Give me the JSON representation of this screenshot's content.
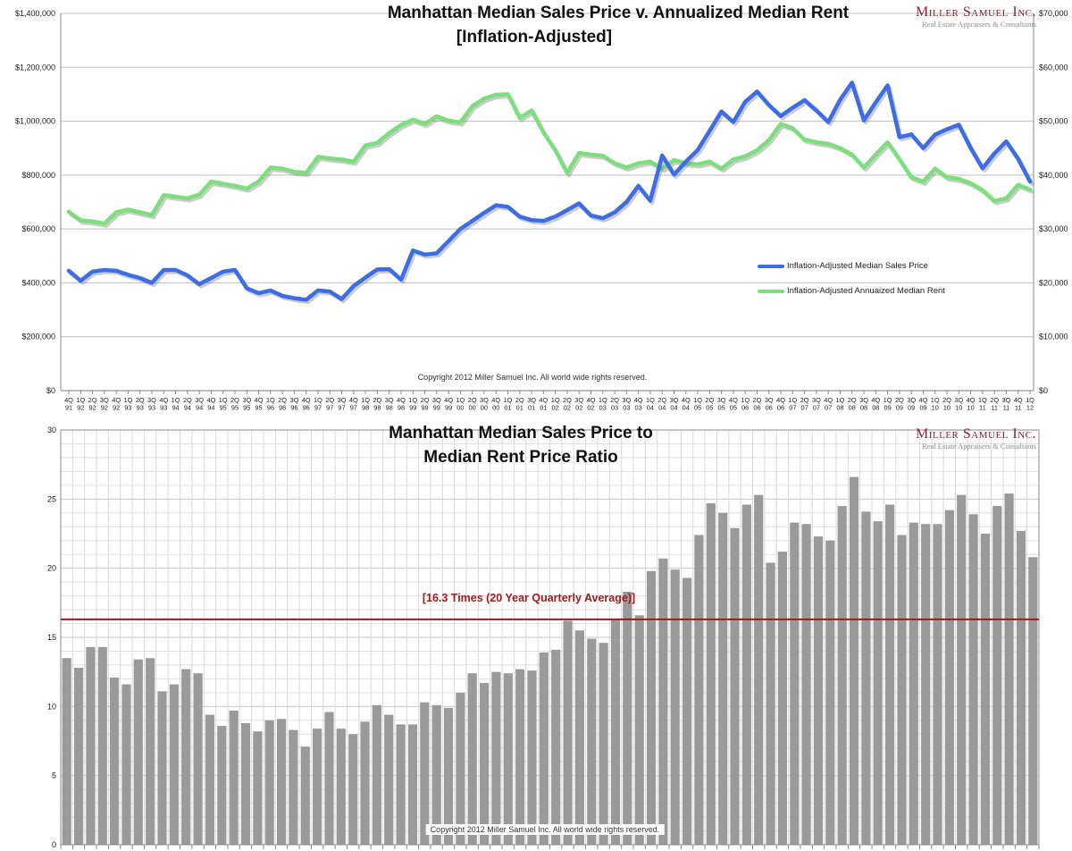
{
  "page": {
    "copyright": "Copyright 2012 Miller Samuel Inc. All world wide rights reserved."
  },
  "logo": {
    "name": "Miller Samuel Inc.",
    "tagline": "Real Estate Appraisers & Consultants",
    "color": "#8B2332",
    "tagline_color": "#8C8C8C"
  },
  "chart_data": [
    {
      "type": "line",
      "title": "Manhattan Median Sales Price v. Annualized Median Rent",
      "subtitle": "[Inflation-Adjusted]",
      "legend_position": "right-middle",
      "grid": "horizontal",
      "categories": [
        "4Q 91",
        "1Q 92",
        "2Q 92",
        "3Q 92",
        "4Q 92",
        "1Q 93",
        "2Q 93",
        "3Q 93",
        "4Q 93",
        "1Q 94",
        "2Q 94",
        "3Q 94",
        "4Q 94",
        "1Q 95",
        "2Q 95",
        "3Q 95",
        "4Q 95",
        "1Q 96",
        "2Q 96",
        "3Q 96",
        "4Q 96",
        "1Q 97",
        "2Q 97",
        "3Q 97",
        "4Q 97",
        "1Q 98",
        "2Q 98",
        "3Q 98",
        "4Q 98",
        "1Q 99",
        "2Q 99",
        "3Q 99",
        "4Q 99",
        "1Q 00",
        "2Q 00",
        "3Q 00",
        "4Q 00",
        "1Q 01",
        "2Q 01",
        "3Q 01",
        "4Q 01",
        "1Q 02",
        "2Q 02",
        "3Q 02",
        "4Q 02",
        "1Q 03",
        "2Q 03",
        "3Q 03",
        "4Q 03",
        "1Q 04",
        "2Q 04",
        "3Q 04",
        "4Q 04",
        "1Q 05",
        "2Q 05",
        "3Q 05",
        "4Q 05",
        "1Q 06",
        "2Q 06",
        "3Q 06",
        "4Q 06",
        "1Q 07",
        "2Q 07",
        "3Q 07",
        "4Q 07",
        "1Q 08",
        "2Q 08",
        "3Q 08",
        "4Q 08",
        "1Q 09",
        "2Q 09",
        "3Q 09",
        "4Q 09",
        "1Q 10",
        "2Q 10",
        "3Q 10",
        "4Q 10",
        "1Q 11",
        "2Q 11",
        "3Q 11",
        "4Q 11",
        "1Q 12"
      ],
      "left_axis": {
        "min": 0,
        "max": 1400000,
        "ticks": [
          "$1,400,000",
          "$1,200,000",
          "$1,000,000",
          "$800,000",
          "$600,000",
          "$400,000",
          "$200,000",
          "$0"
        ]
      },
      "right_axis": {
        "min": 0,
        "max": 70000,
        "ticks": [
          "$70,000",
          "$60,000",
          "$50,000",
          "$40,000",
          "$30,000",
          "$20,000",
          "$10,000",
          "$0"
        ]
      },
      "series": [
        {
          "name": "Inflation-Adjusted Median Sales Price",
          "axis": "left",
          "color": "#3D6CE7",
          "values": [
            445000,
            408000,
            442000,
            448000,
            445000,
            430000,
            418000,
            400000,
            448000,
            448000,
            428000,
            395000,
            418000,
            442000,
            448000,
            380000,
            362000,
            372000,
            352000,
            343000,
            337000,
            372000,
            368000,
            340000,
            388000,
            420000,
            450000,
            451000,
            412000,
            520000,
            505000,
            510000,
            555000,
            600000,
            630000,
            660000,
            688000,
            682000,
            646000,
            633000,
            630000,
            646000,
            670000,
            695000,
            650000,
            640000,
            662000,
            700000,
            760000,
            705000,
            873000,
            802000,
            850000,
            893000,
            964000,
            1036000,
            997000,
            1072000,
            1110000,
            1060000,
            1019000,
            1050000,
            1078000,
            1040000,
            997000,
            1080000,
            1143000,
            1003000,
            1070000,
            1133000,
            941000,
            951000,
            900000,
            950000,
            970000,
            987000,
            900000,
            825000,
            880000,
            925000,
            860000,
            776000
          ]
        },
        {
          "name": "Inflation-Adjusted Annuaized Median Rent",
          "axis": "right",
          "color": "#7CDE7C",
          "values": [
            33200,
            31600,
            31400,
            31000,
            33100,
            33600,
            33100,
            32600,
            36300,
            36000,
            35700,
            36400,
            38800,
            38400,
            38000,
            37500,
            38800,
            41400,
            41200,
            40600,
            40400,
            43400,
            43100,
            42900,
            42500,
            45500,
            46000,
            47800,
            49300,
            50300,
            49500,
            50900,
            50100,
            49800,
            52800,
            54200,
            54900,
            55000,
            50600,
            52000,
            47900,
            44600,
            40400,
            44100,
            43800,
            43600,
            42200,
            41400,
            42200,
            42500,
            41200,
            42800,
            42200,
            42000,
            42500,
            41200,
            42900,
            43500,
            44600,
            46500,
            49500,
            48700,
            46600,
            46100,
            45800,
            45000,
            43800,
            41400,
            43800,
            46100,
            42900,
            39600,
            38800,
            41200,
            39600,
            39300,
            38500,
            37200,
            35200,
            35700,
            38200,
            37300
          ]
        }
      ]
    },
    {
      "type": "bar",
      "title_line1": "Manhattan Median Sales Price to",
      "title_line2": "Median Rent Price Ratio",
      "ylim": [
        0,
        30
      ],
      "yticks": [
        "30",
        "25",
        "20",
        "15",
        "10",
        "5",
        "0"
      ],
      "grid": "both",
      "bar_color": "#9A9A9A",
      "avg_line": {
        "value": 16.3,
        "label": "[16.3 Times (20 Year Quarterly Average)]",
        "color": "#9E1B1B"
      },
      "values": [
        13.5,
        12.8,
        14.3,
        14.3,
        12.1,
        11.6,
        13.4,
        13.5,
        11.1,
        11.6,
        12.7,
        12.4,
        9.4,
        8.6,
        9.7,
        8.8,
        8.2,
        9.0,
        9.1,
        8.3,
        7.1,
        8.4,
        9.6,
        8.4,
        8.0,
        8.9,
        10.1,
        9.4,
        8.7,
        8.7,
        10.3,
        10.1,
        9.9,
        11.0,
        12.4,
        11.7,
        12.5,
        12.4,
        12.7,
        12.6,
        13.9,
        14.1,
        16.2,
        15.5,
        14.9,
        14.6,
        16.3,
        18.3,
        16.6,
        19.8,
        20.7,
        19.9,
        19.3,
        22.4,
        24.7,
        24.0,
        22.9,
        24.6,
        25.3,
        20.4,
        21.2,
        23.3,
        23.2,
        22.3,
        22.0,
        24.5,
        26.6,
        24.1,
        23.4,
        24.6,
        22.4,
        23.3,
        23.2,
        23.2,
        24.2,
        25.3,
        23.9,
        22.5,
        24.5,
        25.4,
        22.7,
        20.8
      ]
    }
  ]
}
